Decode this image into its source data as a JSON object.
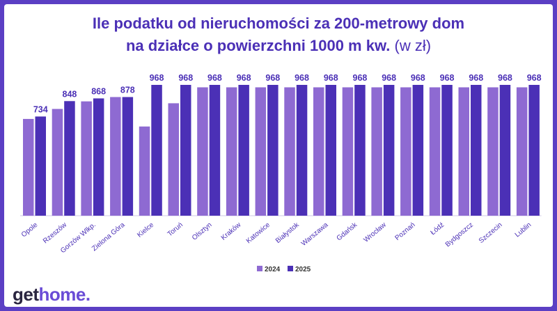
{
  "title": {
    "line1": "Ile podatku od nieruchomości za 200-metrowy dom",
    "line2_main": "na działce o powierzchni 1000 m kw.",
    "line2_unit": "(w zł)"
  },
  "brand": {
    "part1": "get",
    "part2": "home",
    "part3": "."
  },
  "colors": {
    "series2024": "#8e6ad2",
    "series2025": "#4b30b6",
    "label": "#4b30b6"
  },
  "chart_data": {
    "type": "bar",
    "categories": [
      "Opole",
      "Rzeszów",
      "Gorzów Wlkp.",
      "Zielona Góra",
      "Kielce",
      "Toruń",
      "Olsztyn",
      "Kraków",
      "Katowice",
      "Białystok",
      "Warszawa",
      "Gdańsk",
      "Wrocław",
      "Poznań",
      "Łódź",
      "Bydgoszcz",
      "Szczecin",
      "Lublin"
    ],
    "series": [
      {
        "name": "2024",
        "values": [
          716,
          790,
          846,
          878,
          660,
          832,
          950,
          950,
          950,
          950,
          950,
          950,
          950,
          950,
          950,
          950,
          950,
          950
        ]
      },
      {
        "name": "2025",
        "values": [
          734,
          848,
          868,
          878,
          968,
          968,
          968,
          968,
          968,
          968,
          968,
          968,
          968,
          968,
          968,
          968,
          968,
          968
        ]
      }
    ],
    "data_labels": [
      "734",
      "848",
      "868",
      "878",
      "968",
      "968",
      "968",
      "968",
      "968",
      "968",
      "968",
      "968",
      "968",
      "968",
      "968",
      "968",
      "968",
      "968"
    ],
    "ylim": [
      0,
      1000
    ],
    "grid": false,
    "legend": "bottom-center"
  }
}
